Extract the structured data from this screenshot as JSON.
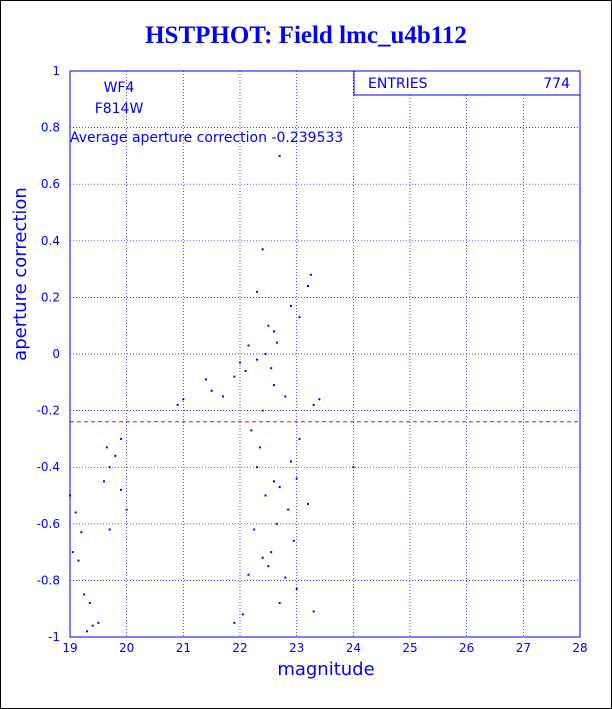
{
  "title": "HSTPHOT: Field lmc_u4b112",
  "colors": {
    "axis": "#0000ff",
    "points": "#0000ff",
    "reference_line": "#ff0000"
  },
  "labels": {
    "chip": "WF4",
    "filter": "F814W",
    "average": "Average aperture correction -0.239533"
  },
  "stats": {
    "entries_label": "ENTRIES",
    "entries_value": "774"
  },
  "chart_data": {
    "type": "scatter",
    "xlabel": "magnitude",
    "ylabel": "aperture correction",
    "xlim": [
      19,
      28
    ],
    "ylim": [
      -1,
      1
    ],
    "xticks": [
      "19",
      "20",
      "21",
      "22",
      "23",
      "24",
      "25",
      "26",
      "27",
      "28"
    ],
    "yticks": [
      "-1",
      "-0.8",
      "-0.6",
      "-0.4",
      "-0.2",
      "0",
      "0.2",
      "0.4",
      "0.6",
      "0.8",
      "1"
    ],
    "grid": true,
    "reference_line": {
      "y": -0.239533,
      "style": "dashed"
    },
    "points": [
      [
        22.7,
        0.7
      ],
      [
        22.4,
        0.37
      ],
      [
        23.25,
        0.28
      ],
      [
        23.2,
        0.24
      ],
      [
        22.3,
        0.22
      ],
      [
        22.9,
        0.17
      ],
      [
        23.05,
        0.13
      ],
      [
        22.5,
        0.1
      ],
      [
        22.6,
        0.08
      ],
      [
        22.65,
        0.04
      ],
      [
        22.15,
        0.03
      ],
      [
        22.3,
        -0.02
      ],
      [
        22.45,
        0.0
      ],
      [
        22.55,
        -0.05
      ],
      [
        22.0,
        -0.03
      ],
      [
        22.1,
        -0.06
      ],
      [
        21.9,
        -0.08
      ],
      [
        23.4,
        -0.16
      ],
      [
        23.3,
        -0.18
      ],
      [
        22.8,
        -0.15
      ],
      [
        22.6,
        -0.11
      ],
      [
        21.4,
        -0.09
      ],
      [
        21.0,
        -0.16
      ],
      [
        20.9,
        -0.18
      ],
      [
        21.5,
        -0.13
      ],
      [
        21.7,
        -0.15
      ],
      [
        22.4,
        -0.2
      ],
      [
        23.05,
        -0.3
      ],
      [
        22.9,
        -0.38
      ],
      [
        23.0,
        -0.44
      ],
      [
        24.0,
        -0.4
      ],
      [
        23.2,
        -0.53
      ],
      [
        22.85,
        -0.55
      ],
      [
        22.95,
        -0.66
      ],
      [
        22.7,
        -0.88
      ],
      [
        23.0,
        -0.83
      ],
      [
        23.3,
        -0.91
      ],
      [
        22.8,
        -0.79
      ],
      [
        22.5,
        -0.75
      ],
      [
        22.4,
        -0.72
      ],
      [
        22.55,
        -0.7
      ],
      [
        22.45,
        -0.5
      ],
      [
        22.35,
        -0.33
      ],
      [
        22.2,
        -0.27
      ],
      [
        22.3,
        -0.4
      ],
      [
        22.6,
        -0.45
      ],
      [
        22.7,
        -0.47
      ],
      [
        22.65,
        -0.6
      ],
      [
        22.25,
        -0.62
      ],
      [
        22.15,
        -0.78
      ],
      [
        22.05,
        -0.92
      ],
      [
        21.9,
        -0.95
      ],
      [
        19.9,
        -0.48
      ],
      [
        20.0,
        -0.55
      ],
      [
        19.7,
        -0.62
      ],
      [
        19.5,
        -0.95
      ],
      [
        19.4,
        -0.96
      ],
      [
        19.3,
        -0.98
      ],
      [
        19.0,
        -0.5
      ],
      [
        19.1,
        -0.56
      ],
      [
        19.2,
        -0.63
      ],
      [
        19.05,
        -0.7
      ],
      [
        19.15,
        -0.73
      ],
      [
        19.25,
        -0.85
      ],
      [
        19.35,
        -0.88
      ],
      [
        19.6,
        -0.45
      ],
      [
        19.7,
        -0.4
      ],
      [
        19.8,
        -0.36
      ],
      [
        19.9,
        -0.3
      ],
      [
        19.65,
        -0.33
      ]
    ]
  }
}
